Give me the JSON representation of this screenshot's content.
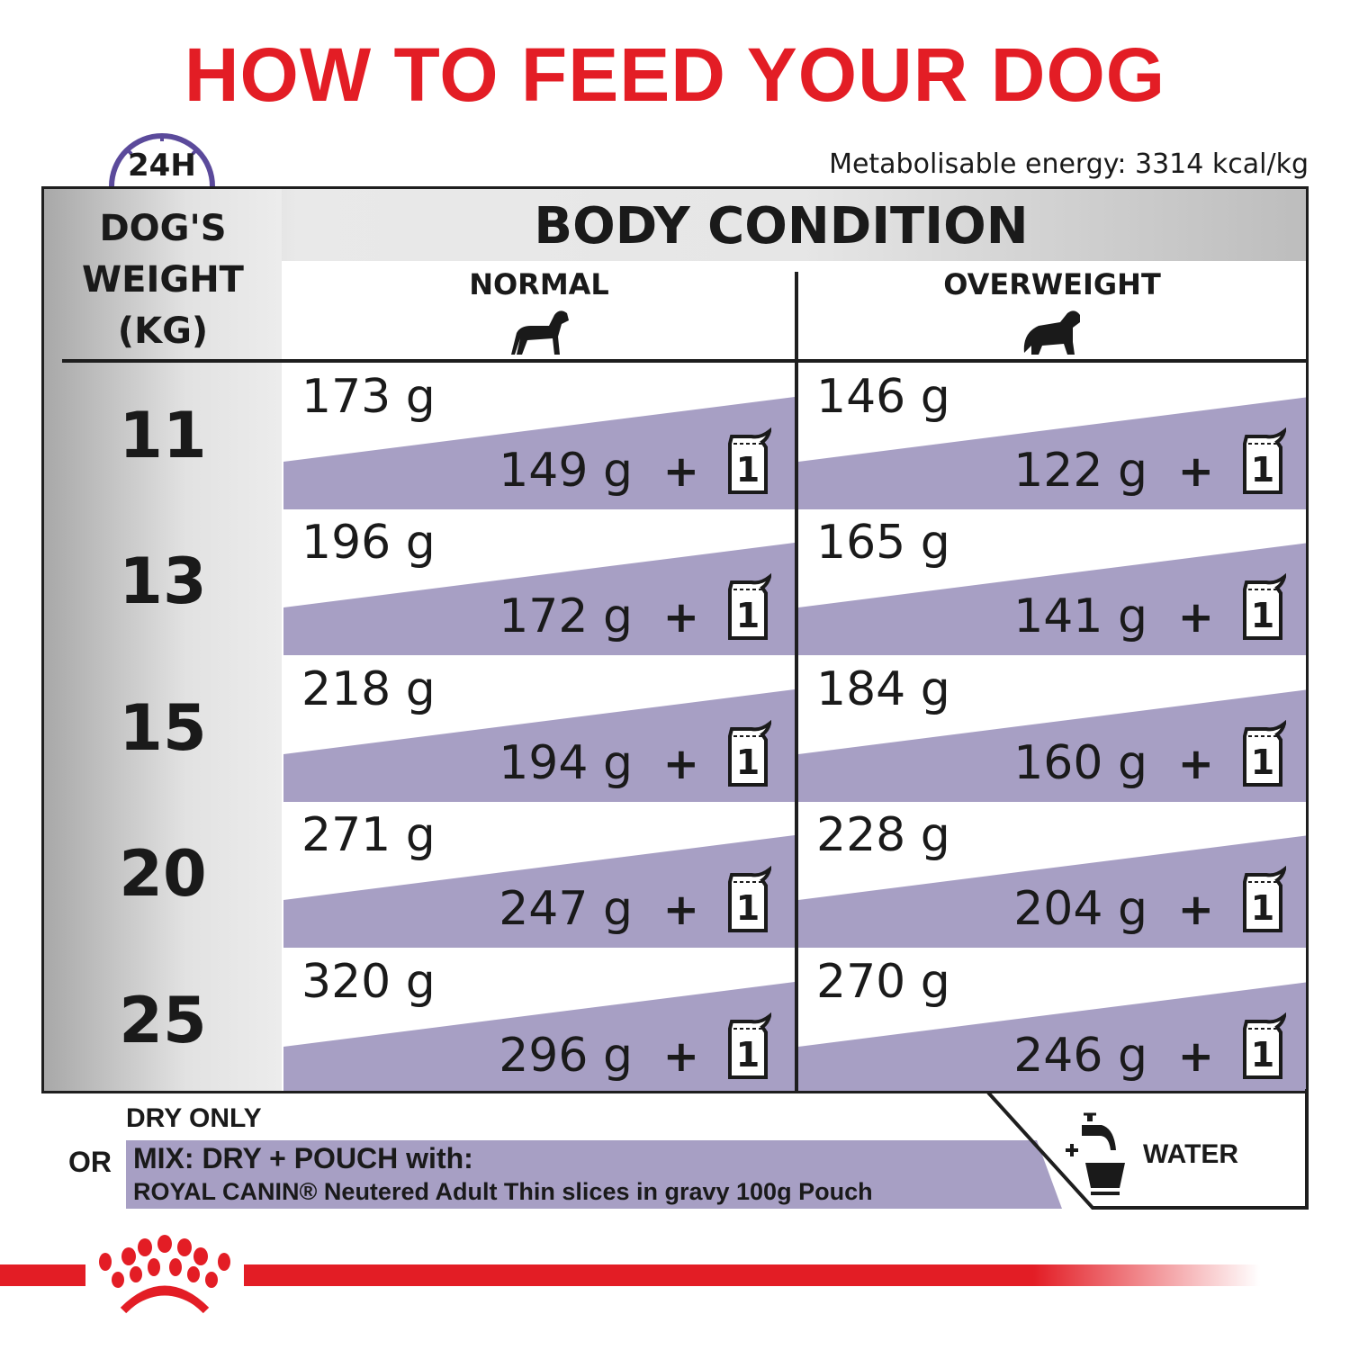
{
  "title": "HOW TO FEED YOUR DOG",
  "clock_label": "24H",
  "energy": "Metabolisable energy: 3314 kcal/kg",
  "table": {
    "weight_header": [
      "DOG'S",
      "WEIGHT",
      "(KG)"
    ],
    "body_condition": "BODY CONDITION",
    "columns": [
      "NORMAL",
      "OVERWEIGHT"
    ],
    "plus": "+",
    "pouch_count": "1",
    "rows": [
      {
        "weight": "11",
        "normal": {
          "dry": "173 g",
          "mix": "149 g"
        },
        "overweight": {
          "dry": "146 g",
          "mix": "122 g"
        }
      },
      {
        "weight": "13",
        "normal": {
          "dry": "196 g",
          "mix": "172 g"
        },
        "overweight": {
          "dry": "165 g",
          "mix": "141 g"
        }
      },
      {
        "weight": "15",
        "normal": {
          "dry": "218 g",
          "mix": "194 g"
        },
        "overweight": {
          "dry": "184 g",
          "mix": "160 g"
        }
      },
      {
        "weight": "20",
        "normal": {
          "dry": "271 g",
          "mix": "247 g"
        },
        "overweight": {
          "dry": "228 g",
          "mix": "204 g"
        }
      },
      {
        "weight": "25",
        "normal": {
          "dry": "320 g",
          "mix": "296 g"
        },
        "overweight": {
          "dry": "270 g",
          "mix": "246 g"
        }
      }
    ]
  },
  "legend": {
    "dry_only": "DRY ONLY",
    "or": "OR",
    "mix_title": "MIX: DRY + POUCH with:",
    "mix_product": "ROYAL CANIN® Neutered Adult Thin slices in gravy 100g Pouch",
    "plus": "+",
    "water": "WATER"
  },
  "colors": {
    "brand_red": "#e31d25",
    "mix_purple": "#a79fc4",
    "clock_purple": "#5b4a9b"
  },
  "icons": [
    "clock-24h-icon",
    "dog-normal-icon",
    "dog-overweight-icon",
    "pouch-icon",
    "water-tap-bowl-icon",
    "royal-canin-crown-logo"
  ]
}
